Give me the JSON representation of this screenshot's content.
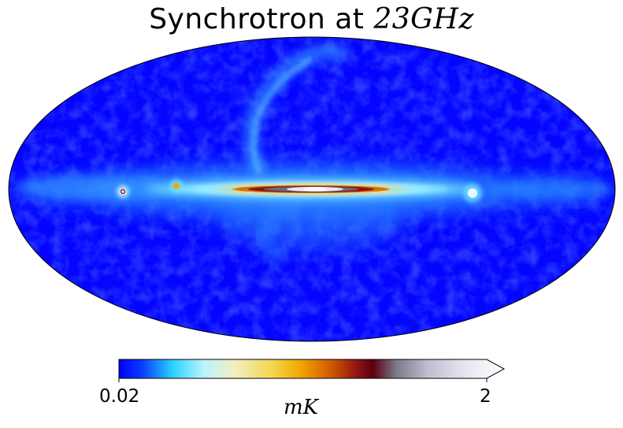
{
  "figure": {
    "title_prefix": "Synchrotron at ",
    "title_math": "23GHz"
  },
  "colorbar": {
    "min_label": "0.02",
    "max_label": "2",
    "unit_label": "mK",
    "colors": [
      "#0000ff",
      "#0b3cff",
      "#2ad2ff",
      "#b9f3ff",
      "#f3efc2",
      "#f2d64a",
      "#f0a800",
      "#d05a00",
      "#8e1212",
      "#5c0010",
      "#7a7a8a",
      "#bdbdd0",
      "#e6e6f2",
      "#ffffff"
    ]
  },
  "map": {
    "projection": "Mollweide",
    "background_color": "#0505ff",
    "features": [
      "galactic-plane",
      "north-polar-spur",
      "point-source-left",
      "point-source-right",
      "galactic-center"
    ]
  }
}
